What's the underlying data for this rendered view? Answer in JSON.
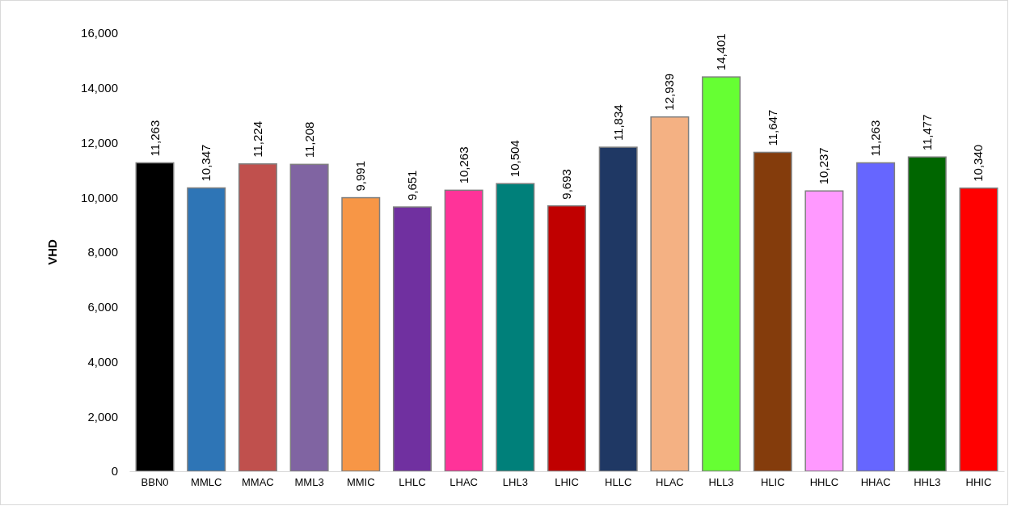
{
  "chart_data": {
    "type": "bar",
    "ylabel": "VHD",
    "categories": [
      "BBN0",
      "MMLC",
      "MMAC",
      "MML3",
      "MMIC",
      "LHLC",
      "LHAC",
      "LHL3",
      "LHIC",
      "HLLC",
      "HLAC",
      "HLL3",
      "HLIC",
      "HHLC",
      "HHAC",
      "HHL3",
      "HHIC"
    ],
    "values": [
      11263,
      10347,
      11224,
      11208,
      9991,
      9651,
      10263,
      10504,
      9693,
      11834,
      12939,
      14401,
      11647,
      10237,
      11263,
      11477,
      10340
    ],
    "colors": [
      "#000000",
      "#2e75b6",
      "#c0504d",
      "#8064a2",
      "#f79646",
      "#7030a0",
      "#ff3399",
      "#00807a",
      "#c00000",
      "#1f3864",
      "#f4b183",
      "#66ff33",
      "#843c0c",
      "#ff99ff",
      "#6666ff",
      "#006600",
      "#ff0000"
    ],
    "ylim": [
      0,
      16000
    ],
    "yticks": [
      0,
      {
        "value": 2000,
        "label": "2,000"
      },
      {
        "value": 4000,
        "label": "4,000"
      },
      {
        "value": 6000,
        "label": "6,000"
      },
      {
        "value": 8000,
        "label": "8,000"
      },
      {
        "value": 10000,
        "label": "10,000"
      },
      {
        "value": 12000,
        "label": "12,000"
      },
      {
        "value": 14000,
        "label": "14,000"
      },
      {
        "value": 16000,
        "label": "16,000"
      }
    ],
    "value_labels": [
      "11,263",
      "10,347",
      "11,224",
      "11,208",
      "9,991",
      "9,651",
      "10,263",
      "10,504",
      "9,693",
      "11,834",
      "12,939",
      "14,401",
      "11,647",
      "10,237",
      "11,263",
      "11,477",
      "10,340"
    ],
    "grid": false
  }
}
